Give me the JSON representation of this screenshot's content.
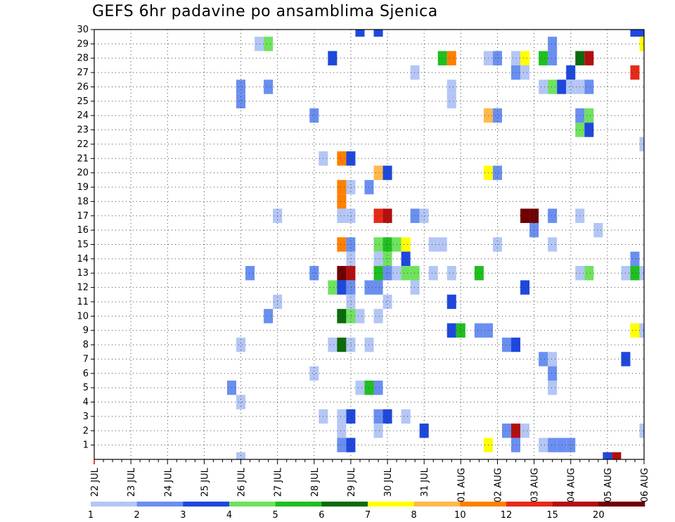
{
  "chart_data": {
    "type": "heatmap",
    "title": "GEFS 6hr padavine po ansamblima Sjenica",
    "xlabel": "",
    "ylabel": "",
    "x_ticks": [
      "22 JUL",
      "23 JUL",
      "24 JUL",
      "25 JUL",
      "26 JUL",
      "27 JUL",
      "28 JUL",
      "29 JUL",
      "30 JUL",
      "31 JUL",
      "01 AUG",
      "02 AUG",
      "03 AUG",
      "04 AUG",
      "05 AUG",
      "06 AUG"
    ],
    "x_unit": "6h steps since 22 JUL 00Z",
    "xlim": [
      0,
      60
    ],
    "y_ticks": [
      1,
      2,
      3,
      4,
      5,
      6,
      7,
      8,
      9,
      10,
      11,
      12,
      13,
      14,
      15,
      16,
      17,
      18,
      19,
      20,
      21,
      22,
      23,
      24,
      25,
      26,
      27,
      28,
      29,
      30
    ],
    "ylim": [
      0,
      30
    ],
    "grid": true,
    "colorbar": {
      "labels": [
        "1",
        "2",
        "3",
        "4",
        "5",
        "6",
        "7",
        "8",
        "10",
        "12",
        "15",
        "20"
      ],
      "colors": [
        "#b3c6f5",
        "#6a8ff0",
        "#1e48dd",
        "#6fe25e",
        "#1fbf1f",
        "#0b6b0b",
        "#ffff00",
        "#ffb84d",
        "#ff7f00",
        "#e62a1a",
        "#b40e0e",
        "#6e0000"
      ]
    },
    "cells": [
      [
        29,
        30,
        3
      ],
      [
        31,
        30,
        3
      ],
      [
        59,
        30,
        3
      ],
      [
        60,
        30,
        3
      ],
      [
        18,
        29,
        1
      ],
      [
        19,
        29,
        4
      ],
      [
        50,
        29,
        2
      ],
      [
        60,
        29,
        7
      ],
      [
        26,
        28,
        3
      ],
      [
        38,
        28,
        5
      ],
      [
        39,
        28,
        9
      ],
      [
        43,
        28,
        1
      ],
      [
        44,
        28,
        2
      ],
      [
        46,
        28,
        1
      ],
      [
        47,
        28,
        7
      ],
      [
        49,
        28,
        5
      ],
      [
        50,
        28,
        2
      ],
      [
        53,
        28,
        6
      ],
      [
        54,
        28,
        11
      ],
      [
        35,
        27,
        1
      ],
      [
        46,
        27,
        2
      ],
      [
        47,
        27,
        1
      ],
      [
        52,
        27,
        3
      ],
      [
        59,
        27,
        10
      ],
      [
        16,
        26,
        2
      ],
      [
        19,
        26,
        2
      ],
      [
        39,
        26,
        1
      ],
      [
        49,
        26,
        1
      ],
      [
        50,
        26,
        4
      ],
      [
        51,
        26,
        3
      ],
      [
        52,
        26,
        1
      ],
      [
        53,
        26,
        1
      ],
      [
        54,
        26,
        2
      ],
      [
        16,
        25,
        2
      ],
      [
        39,
        25,
        1
      ],
      [
        24,
        24,
        2
      ],
      [
        43,
        24,
        8
      ],
      [
        44,
        24,
        2
      ],
      [
        53,
        24,
        2
      ],
      [
        54,
        24,
        4
      ],
      [
        53,
        23,
        4
      ],
      [
        54,
        23,
        3
      ],
      [
        60,
        22,
        1
      ],
      [
        25,
        21,
        1
      ],
      [
        27,
        21,
        9
      ],
      [
        28,
        21,
        3
      ],
      [
        31,
        20,
        8
      ],
      [
        32,
        20,
        3
      ],
      [
        43,
        20,
        7
      ],
      [
        44,
        20,
        2
      ],
      [
        27,
        19,
        9
      ],
      [
        28,
        19,
        1
      ],
      [
        30,
        19,
        2
      ],
      [
        27,
        18,
        9
      ],
      [
        20,
        17,
        1
      ],
      [
        27,
        17,
        1
      ],
      [
        28,
        17,
        1
      ],
      [
        31,
        17,
        10
      ],
      [
        32,
        17,
        11
      ],
      [
        35,
        17,
        2
      ],
      [
        36,
        17,
        1
      ],
      [
        47,
        17,
        12
      ],
      [
        48,
        17,
        12
      ],
      [
        50,
        17,
        2
      ],
      [
        53,
        17,
        1
      ],
      [
        48,
        16,
        2
      ],
      [
        55,
        16,
        1
      ],
      [
        27,
        15,
        9
      ],
      [
        28,
        15,
        2
      ],
      [
        31,
        15,
        4
      ],
      [
        32,
        15,
        5
      ],
      [
        33,
        15,
        4
      ],
      [
        34,
        15,
        7
      ],
      [
        37,
        15,
        1
      ],
      [
        38,
        15,
        1
      ],
      [
        44,
        15,
        1
      ],
      [
        50,
        15,
        1
      ],
      [
        28,
        14,
        1
      ],
      [
        31,
        14,
        1
      ],
      [
        32,
        14,
        4
      ],
      [
        34,
        14,
        3
      ],
      [
        59,
        14,
        2
      ],
      [
        17,
        13,
        2
      ],
      [
        24,
        13,
        2
      ],
      [
        27,
        13,
        12
      ],
      [
        28,
        13,
        11
      ],
      [
        31,
        13,
        5
      ],
      [
        32,
        13,
        2
      ],
      [
        33,
        13,
        1
      ],
      [
        34,
        13,
        4
      ],
      [
        35,
        13,
        4
      ],
      [
        37,
        13,
        1
      ],
      [
        39,
        13,
        1
      ],
      [
        42,
        13,
        5
      ],
      [
        53,
        13,
        1
      ],
      [
        54,
        13,
        4
      ],
      [
        58,
        13,
        1
      ],
      [
        59,
        13,
        5
      ],
      [
        60,
        13,
        1
      ],
      [
        26,
        12,
        4
      ],
      [
        27,
        12,
        3
      ],
      [
        28,
        12,
        2
      ],
      [
        30,
        12,
        2
      ],
      [
        31,
        12,
        2
      ],
      [
        35,
        12,
        1
      ],
      [
        47,
        12,
        3
      ],
      [
        20,
        11,
        1
      ],
      [
        28,
        11,
        1
      ],
      [
        32,
        11,
        1
      ],
      [
        39,
        11,
        3
      ],
      [
        19,
        10,
        2
      ],
      [
        27,
        10,
        6
      ],
      [
        28,
        10,
        4
      ],
      [
        29,
        10,
        1
      ],
      [
        31,
        10,
        1
      ],
      [
        39,
        9,
        3
      ],
      [
        40,
        9,
        5
      ],
      [
        42,
        9,
        2
      ],
      [
        43,
        9,
        2
      ],
      [
        59,
        9,
        7
      ],
      [
        60,
        9,
        1
      ],
      [
        16,
        8,
        1
      ],
      [
        26,
        8,
        1
      ],
      [
        27,
        8,
        6
      ],
      [
        28,
        8,
        1
      ],
      [
        30,
        8,
        1
      ],
      [
        45,
        8,
        2
      ],
      [
        46,
        8,
        3
      ],
      [
        49,
        7,
        2
      ],
      [
        50,
        7,
        1
      ],
      [
        58,
        7,
        3
      ],
      [
        24,
        6,
        1
      ],
      [
        50,
        6,
        2
      ],
      [
        15,
        5,
        2
      ],
      [
        29,
        5,
        1
      ],
      [
        30,
        5,
        5
      ],
      [
        31,
        5,
        2
      ],
      [
        50,
        5,
        1
      ],
      [
        16,
        4,
        1
      ],
      [
        25,
        3,
        1
      ],
      [
        27,
        3,
        1
      ],
      [
        28,
        3,
        3
      ],
      [
        31,
        3,
        2
      ],
      [
        32,
        3,
        3
      ],
      [
        34,
        3,
        1
      ],
      [
        27,
        2,
        1
      ],
      [
        31,
        2,
        1
      ],
      [
        36,
        2,
        3
      ],
      [
        45,
        2,
        2
      ],
      [
        46,
        2,
        11
      ],
      [
        47,
        2,
        1
      ],
      [
        60,
        2,
        1
      ],
      [
        27,
        1,
        2
      ],
      [
        28,
        1,
        3
      ],
      [
        43,
        1,
        7
      ],
      [
        46,
        1,
        2
      ],
      [
        49,
        1,
        1
      ],
      [
        50,
        1,
        2
      ],
      [
        51,
        1,
        2
      ],
      [
        52,
        1,
        2
      ],
      [
        16,
        0,
        1
      ],
      [
        56,
        0,
        3
      ],
      [
        57,
        0,
        11
      ]
    ]
  }
}
